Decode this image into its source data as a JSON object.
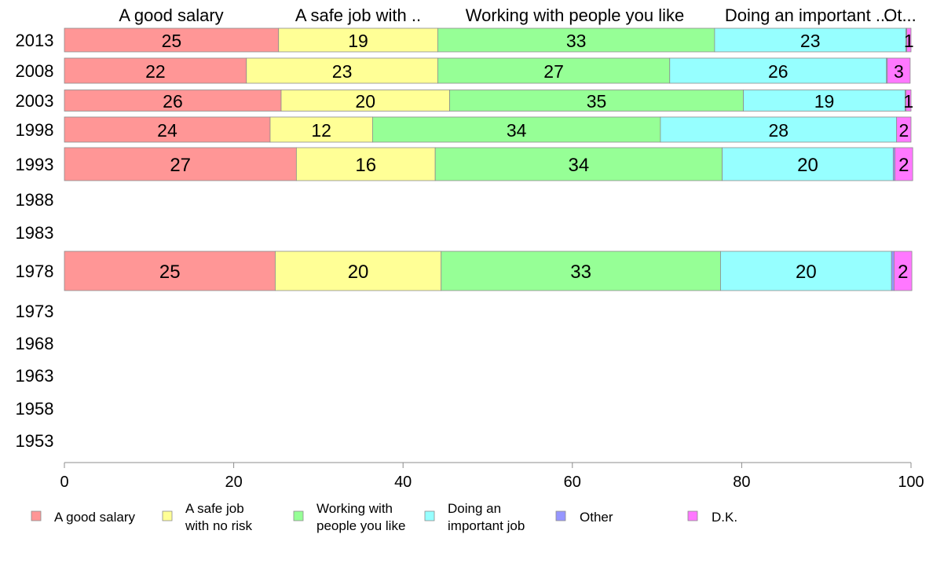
{
  "chart_data": {
    "type": "bar",
    "orientation": "horizontal",
    "stacked": true,
    "years": [
      "2013",
      "2008",
      "2003",
      "1998",
      "1993",
      "1988",
      "1983",
      "1978",
      "1973",
      "1968",
      "1963",
      "1958",
      "1953"
    ],
    "series": [
      {
        "name": "A good salary",
        "header": "A good salary",
        "legend": [
          "A good salary"
        ],
        "color": "#FF9696",
        "values": [
          25.3,
          21.5,
          25.6,
          24.3,
          27.4,
          null,
          null,
          24.9,
          null,
          null,
          null,
          null,
          null
        ]
      },
      {
        "name": "A safe job with no risk",
        "header": "A safe job with ..",
        "legend": [
          "A safe job",
          "with no risk"
        ],
        "color": "#FFFF96",
        "values": [
          18.8,
          22.6,
          19.9,
          12.1,
          16.4,
          null,
          null,
          19.6,
          null,
          null,
          null,
          null,
          null
        ]
      },
      {
        "name": "Working with people you like",
        "header": "Working with people you like",
        "legend": [
          "Working with",
          "people you like"
        ],
        "color": "#96FF96",
        "values": [
          32.7,
          27.4,
          34.7,
          34.0,
          33.9,
          null,
          null,
          33.0,
          null,
          null,
          null,
          null,
          null
        ]
      },
      {
        "name": "Doing an important job",
        "header": "Doing an important ...",
        "legend": [
          "Doing an",
          "important job"
        ],
        "color": "#96FFFF",
        "values": [
          22.6,
          25.6,
          19.1,
          27.9,
          20.2,
          null,
          null,
          20.2,
          null,
          null,
          null,
          null,
          null
        ]
      },
      {
        "name": "Other",
        "header": "Ot...",
        "legend": [
          "Other"
        ],
        "color": "#9696FF",
        "values": [
          0.1,
          0.1,
          0.1,
          0.0,
          0.2,
          null,
          null,
          0.3,
          null,
          null,
          null,
          null,
          null
        ]
      },
      {
        "name": "D.K.",
        "header": "",
        "legend": [
          "D.K."
        ],
        "color": "#FF78FF",
        "values": [
          0.5,
          2.7,
          0.6,
          1.7,
          2.1,
          null,
          null,
          2.1,
          null,
          null,
          null,
          null,
          null
        ]
      }
    ],
    "data_labels": [
      [
        "25",
        "19",
        "33",
        "23",
        "",
        "1"
      ],
      [
        "22",
        "23",
        "27",
        "26",
        "",
        "3"
      ],
      [
        "26",
        "20",
        "35",
        "19",
        "",
        "1"
      ],
      [
        "24",
        "12",
        "34",
        "28",
        "",
        "2"
      ],
      [
        "27",
        "16",
        "34",
        "20",
        "",
        "2"
      ],
      [],
      [],
      [
        "25",
        "20",
        "33",
        "20",
        "",
        "2"
      ],
      [],
      [],
      [],
      [],
      []
    ],
    "xlim": [
      0,
      100
    ],
    "xticks": [
      "0",
      "20",
      "40",
      "60",
      "80",
      "100"
    ],
    "xlabel": "",
    "ylabel": "",
    "grid": false,
    "legend_position": "bottom"
  }
}
